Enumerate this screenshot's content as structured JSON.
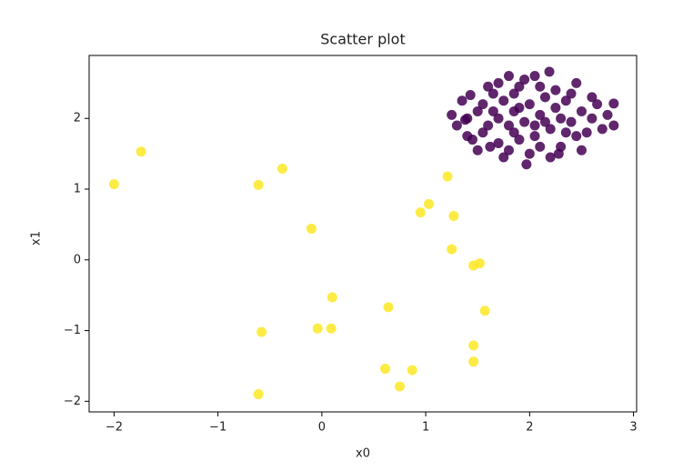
{
  "chart_data": {
    "type": "scatter",
    "title": "Scatter plot",
    "x_label": "x0",
    "y_label": "x1",
    "xlim": [
      -2.24,
      3.03
    ],
    "ylim": [
      -2.15,
      2.89
    ],
    "xticks": [
      {
        "value": -2,
        "label": "−2"
      },
      {
        "value": -1,
        "label": "−1"
      },
      0,
      1,
      2,
      3
    ],
    "yticks": [
      {
        "value": -2,
        "label": "−2"
      },
      {
        "value": -1,
        "label": "−1"
      },
      0,
      1,
      2
    ],
    "series": [
      {
        "color": "#440154",
        "x": [
          1.95,
          2.1,
          1.8,
          2.0,
          1.85,
          2.2,
          1.7,
          2.3,
          1.9,
          2.05,
          1.6,
          2.4,
          1.75,
          2.15,
          1.5,
          2.5,
          1.55,
          2.45,
          1.65,
          2.25,
          1.9,
          2.0,
          1.8,
          2.3,
          1.4,
          2.6,
          1.45,
          2.55,
          1.35,
          2.65,
          1.7,
          2.35,
          2.1,
          1.85,
          1.95,
          2.05,
          1.6,
          2.4,
          1.3,
          2.7,
          1.5,
          2.5,
          2.2,
          1.75,
          2.81,
          2.81,
          2.19,
          1.97,
          1.43,
          1.38,
          1.25,
          2.75,
          1.9,
          2.05,
          1.85,
          2.15,
          1.65,
          2.25,
          2.35,
          1.55,
          2.6,
          1.4,
          2.45,
          1.8,
          2.1,
          1.7,
          2.28,
          1.62
        ],
        "y": [
          1.95,
          2.05,
          1.9,
          2.2,
          2.1,
          1.85,
          2.0,
          2.0,
          1.7,
          1.75,
          1.9,
          1.95,
          2.25,
          2.3,
          2.1,
          2.1,
          1.8,
          1.75,
          2.35,
          2.4,
          2.45,
          1.5,
          1.55,
          1.6,
          2.0,
          2.0,
          1.7,
          1.8,
          2.25,
          2.2,
          1.65,
          2.25,
          1.6,
          2.35,
          2.55,
          2.6,
          2.45,
          2.35,
          1.9,
          1.85,
          1.55,
          1.55,
          1.45,
          1.45,
          2.21,
          1.9,
          2.66,
          1.35,
          2.33,
          1.98,
          2.05,
          2.05,
          2.15,
          1.9,
          1.8,
          1.95,
          2.1,
          2.15,
          1.8,
          2.2,
          2.3,
          1.75,
          2.5,
          2.6,
          2.45,
          2.5,
          1.5,
          1.6
        ]
      },
      {
        "color": "#fde725",
        "x": [
          -2.0,
          -1.74,
          -0.61,
          -0.38,
          -0.1,
          1.21,
          1.03,
          0.95,
          1.27,
          1.25,
          1.46,
          1.52,
          0.1,
          0.64,
          1.57,
          -0.04,
          0.09,
          -0.58,
          1.46,
          1.46,
          0.61,
          0.87,
          0.75,
          -0.61
        ],
        "y": [
          1.07,
          1.53,
          1.06,
          1.29,
          0.44,
          1.18,
          0.79,
          0.67,
          0.62,
          0.15,
          -0.08,
          -0.05,
          -0.53,
          -0.67,
          -0.72,
          -0.97,
          -0.97,
          -1.02,
          -1.21,
          -1.44,
          -1.54,
          -1.56,
          -1.79,
          -1.9
        ]
      }
    ]
  }
}
